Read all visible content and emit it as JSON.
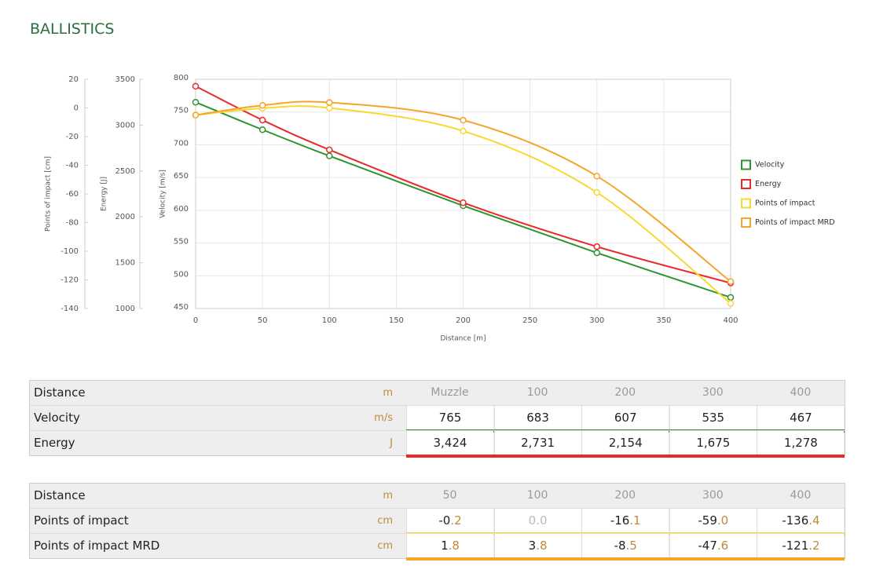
{
  "header": {
    "title": "BALLISTICS"
  },
  "chart_data": {
    "type": "line",
    "smooth": true,
    "grid": true,
    "legend": "right",
    "x": [
      0,
      50,
      100,
      200,
      300,
      400
    ],
    "xlim": [
      0,
      400
    ],
    "xticks": [
      0,
      50,
      100,
      150,
      200,
      250,
      300,
      350,
      400
    ],
    "xlabel": "Distance [m]",
    "ylim": [
      450,
      800
    ],
    "yticks": [
      450,
      500,
      550,
      600,
      650,
      700,
      750,
      800
    ],
    "ylabel": "Velocity [m/s]",
    "y2lim": [
      1000,
      3500
    ],
    "y2ticks": [
      1000,
      1500,
      2000,
      2500,
      3000,
      3500
    ],
    "y2label": "Energy [J]",
    "y3lim": [
      -140,
      20
    ],
    "y3ticks": [
      -140,
      -120,
      -100,
      -80,
      -60,
      -40,
      -20,
      0,
      20
    ],
    "y3label": "Points of impact [cm]",
    "series": [
      {
        "name": "Velocity",
        "color": "#2e9430",
        "axis": "y",
        "values": [
          765,
          723,
          683,
          607,
          535,
          467
        ]
      },
      {
        "name": "Energy",
        "color": "#e82a2a",
        "axis": "y2",
        "values": [
          3424,
          3055,
          2731,
          2154,
          1675,
          1278
        ]
      },
      {
        "name": "Points of impact",
        "color": "#f7d934",
        "axis": "y3",
        "values": [
          -5,
          -0.2,
          0,
          -16.1,
          -59,
          -136.4
        ]
      },
      {
        "name": "Points of impact MRD",
        "color": "#f5a52a",
        "axis": "y3",
        "values": [
          -5,
          1.8,
          3.8,
          -8.5,
          -47.6,
          -121.2
        ]
      }
    ]
  },
  "tables": [
    {
      "header": [
        "Distance",
        "m",
        "Muzzle",
        "100",
        "200",
        "300",
        "400"
      ],
      "rows": [
        [
          "Velocity",
          "m/s",
          "765",
          "683",
          "607",
          "535",
          "467"
        ],
        [
          "Energy",
          "J",
          "3,424",
          "2,731",
          "2,154",
          "1,675",
          "1,278"
        ]
      ]
    },
    {
      "header": [
        "Distance",
        "m",
        "50",
        "100",
        "200",
        "300",
        "400"
      ],
      "rows": [
        [
          "Points of impact",
          "cm",
          "-0.2",
          "0.0",
          "-16.1",
          "-59.0",
          "-136.4"
        ],
        [
          "Points of impact MRD",
          "cm",
          "1.8",
          "3.8",
          "-8.5",
          "-47.6",
          "-121.2"
        ]
      ]
    }
  ]
}
